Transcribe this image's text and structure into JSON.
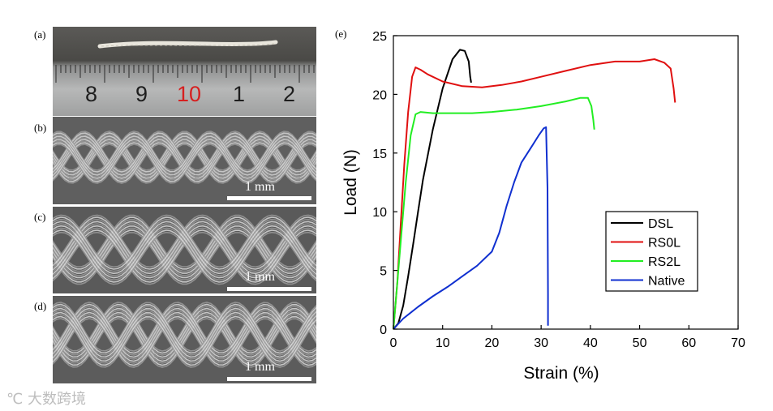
{
  "panel_labels": {
    "a": "(a)",
    "b": "(b)",
    "c": "(c)",
    "d": "(d)",
    "e": "(e)"
  },
  "ruler": {
    "numbers": [
      "8",
      "9",
      "10",
      "1",
      "2"
    ],
    "highlight_color": "#d62020"
  },
  "scale_bars": {
    "b": "1 mm",
    "c": "1 mm",
    "d": "1 mm"
  },
  "watermark": "大数跨境",
  "chart_data": {
    "type": "line",
    "title": "",
    "xlabel": "Strain (%)",
    "ylabel": "Load (N)",
    "xlim": [
      0,
      70
    ],
    "ylim": [
      0,
      25
    ],
    "xticks": [
      0,
      10,
      20,
      30,
      40,
      50,
      60,
      70
    ],
    "yticks": [
      0,
      5,
      10,
      15,
      20,
      25
    ],
    "legend_position": "center-right",
    "series": [
      {
        "name": "DSL",
        "color": "#000000",
        "x": [
          0,
          1,
          2,
          3,
          4,
          5,
          6,
          8,
          10,
          12,
          13.5,
          14.5,
          15.3,
          15.6,
          15.8
        ],
        "y": [
          0,
          0.5,
          2,
          4.5,
          7.2,
          10,
          12.7,
          17,
          20.5,
          23,
          23.8,
          23.7,
          22.8,
          21.5,
          21
        ]
      },
      {
        "name": "RS0L",
        "color": "#e01010",
        "x": [
          0,
          0.8,
          1.5,
          2.2,
          3,
          3.8,
          4.5,
          5.5,
          7,
          10,
          14,
          18,
          22,
          26,
          30,
          35,
          40,
          45,
          50,
          53,
          55,
          56.3,
          56.9,
          57.2
        ],
        "y": [
          0,
          4,
          9,
          14,
          18.5,
          21.5,
          22.3,
          22.1,
          21.7,
          21.1,
          20.7,
          20.6,
          20.8,
          21.1,
          21.5,
          22,
          22.5,
          22.8,
          22.8,
          23,
          22.7,
          22.2,
          20.5,
          19.3
        ]
      },
      {
        "name": "RS2L",
        "color": "#22ee22",
        "x": [
          0,
          0.8,
          1.6,
          2.5,
          3.5,
          4.5,
          5.5,
          8,
          12,
          16,
          20,
          25,
          30,
          35,
          38,
          39.5,
          40.2,
          40.6,
          40.8
        ],
        "y": [
          0,
          4,
          8,
          12.5,
          16.5,
          18.3,
          18.5,
          18.4,
          18.4,
          18.4,
          18.5,
          18.7,
          19,
          19.4,
          19.7,
          19.7,
          19,
          17.8,
          17
        ]
      },
      {
        "name": "Native",
        "color": "#1030d0",
        "x": [
          0,
          2,
          5,
          8,
          11,
          14,
          17,
          20,
          21.5,
          23,
          24.5,
          26,
          28,
          29.5,
          30.5,
          31,
          31.3,
          31.4,
          31.4
        ],
        "y": [
          0,
          0.9,
          1.9,
          2.8,
          3.6,
          4.5,
          5.4,
          6.6,
          8.2,
          10.5,
          12.5,
          14.2,
          15.5,
          16.5,
          17.1,
          17.2,
          12,
          3,
          0.3
        ]
      }
    ]
  }
}
